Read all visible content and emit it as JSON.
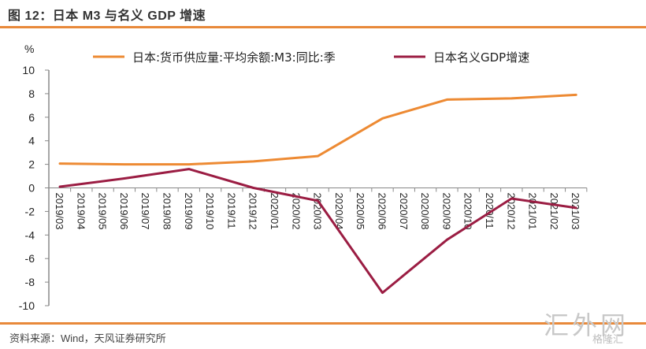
{
  "header": {
    "title": "图 12：日本 M3 与名义 GDP 增速"
  },
  "footer": {
    "source": "资料来源：Wind，天风证券研究所"
  },
  "watermark": {
    "main": "汇外网",
    "sub": "格隆汇"
  },
  "colors": {
    "accent": "#e8893a",
    "m3_series": "#ed8a33",
    "gdp_series": "#9b1d43",
    "axis": "#888888"
  },
  "chart_data": {
    "type": "line",
    "title": "",
    "ylabel": "%",
    "xlabel": "",
    "ylim": [
      -10,
      10
    ],
    "yticks": [
      10,
      8,
      6,
      4,
      2,
      0,
      -2,
      -4,
      -6,
      -8,
      -10
    ],
    "grid": false,
    "legend": "top",
    "categories": [
      "2019/03",
      "2019/04",
      "2019/05",
      "2019/06",
      "2019/07",
      "2019/08",
      "2019/09",
      "2019/10",
      "2019/11",
      "2019/12",
      "2020/01",
      "2020/02",
      "2020/03",
      "2020/04",
      "2020/05",
      "2020/06",
      "2020/07",
      "2020/08",
      "2020/09",
      "2020/10",
      "2020/11",
      "2020/12",
      "2021/01",
      "2021/02",
      "2021/03"
    ],
    "series": [
      {
        "name": "日本:货币供应量:平均余额:M3:同比:季",
        "color": "#ed8a33",
        "points": [
          {
            "x": "2019/03",
            "y": 2.07
          },
          {
            "x": "2019/06",
            "y": 2.0
          },
          {
            "x": "2019/09",
            "y": 2.0
          },
          {
            "x": "2019/12",
            "y": 2.25
          },
          {
            "x": "2020/03",
            "y": 2.7
          },
          {
            "x": "2020/06",
            "y": 5.9
          },
          {
            "x": "2020/09",
            "y": 7.5
          },
          {
            "x": "2020/12",
            "y": 7.6
          },
          {
            "x": "2021/03",
            "y": 7.9
          }
        ]
      },
      {
        "name": "日本名义GDP增速",
        "color": "#9b1d43",
        "points": [
          {
            "x": "2019/03",
            "y": 0.1
          },
          {
            "x": "2019/06",
            "y": 0.8
          },
          {
            "x": "2019/09",
            "y": 1.6
          },
          {
            "x": "2019/12",
            "y": 0.0
          },
          {
            "x": "2020/03",
            "y": -1.1
          },
          {
            "x": "2020/06",
            "y": -8.9
          },
          {
            "x": "2020/09",
            "y": -4.4
          },
          {
            "x": "2020/12",
            "y": -0.9
          },
          {
            "x": "2021/03",
            "y": -1.7
          }
        ]
      }
    ]
  }
}
